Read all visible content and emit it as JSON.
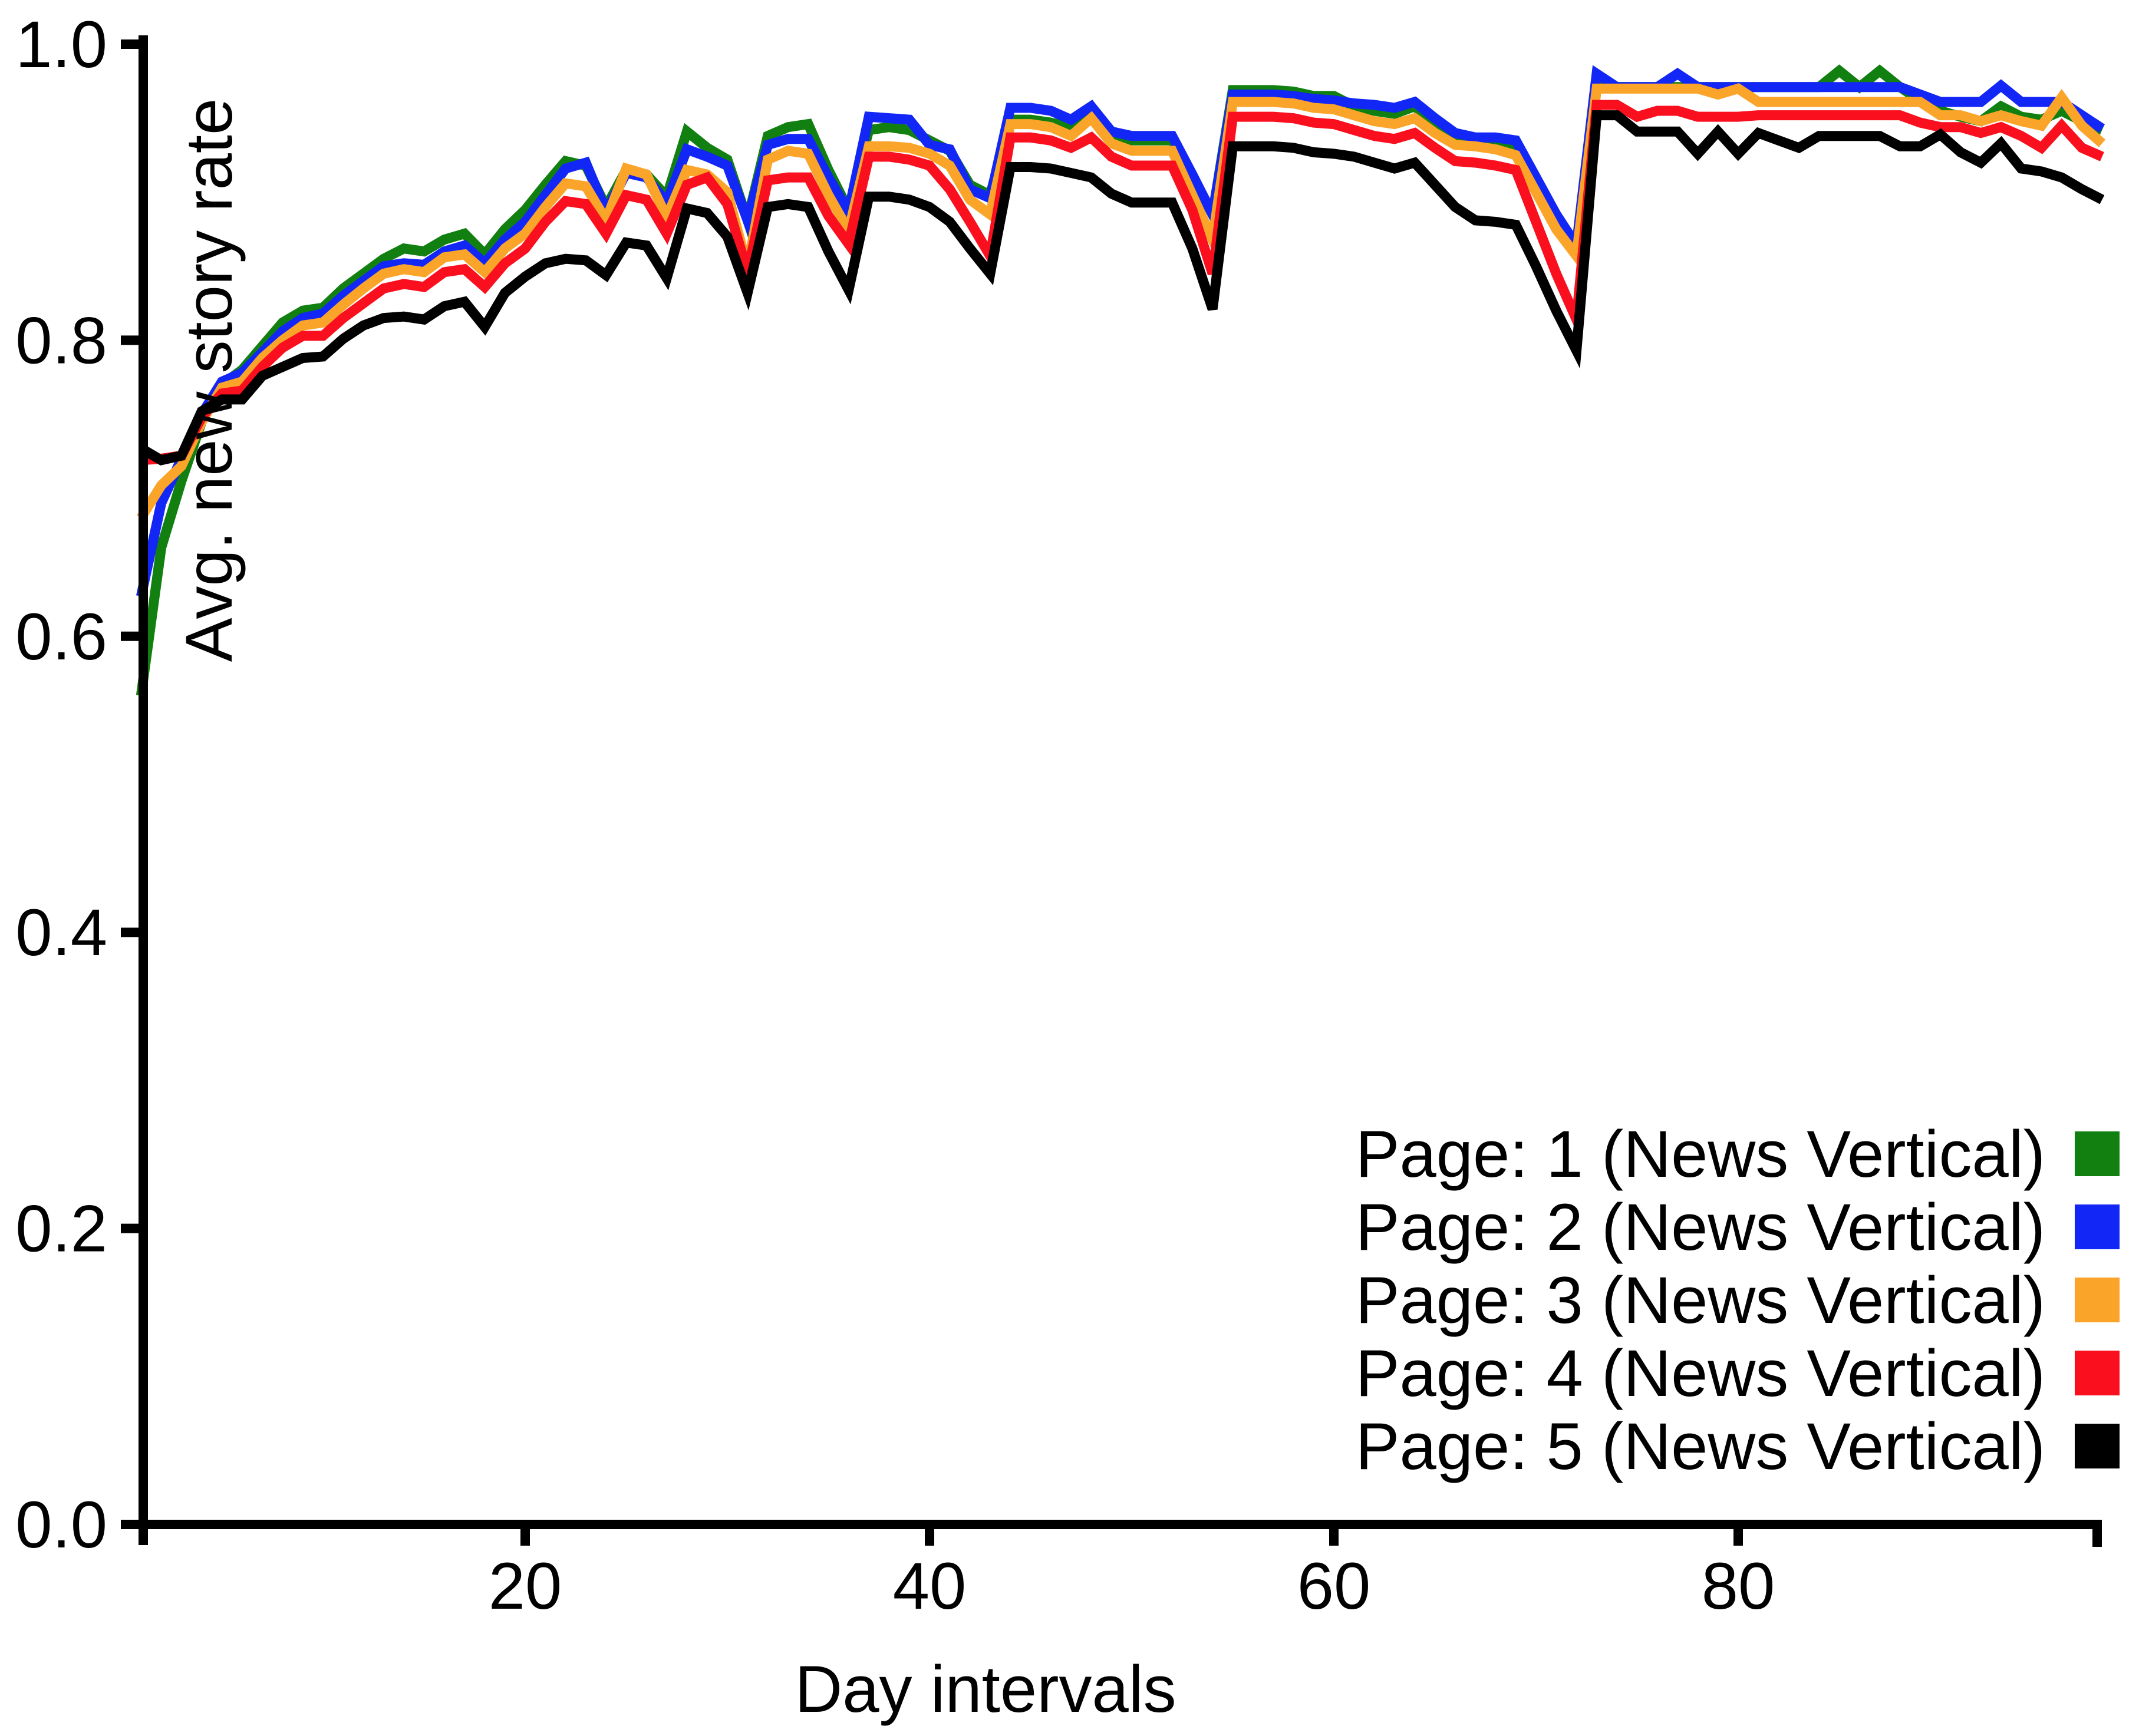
{
  "chart_data": {
    "type": "line",
    "title": "",
    "xlabel": "Day intervals",
    "ylabel": "Avg. new story rate",
    "xlim": [
      0,
      98
    ],
    "ylim": [
      0.0,
      1.0
    ],
    "grid": false,
    "legend_position": "lower right",
    "x_ticks": [
      "20",
      "40",
      "60",
      "80"
    ],
    "y_ticks": [
      "1.0",
      "0.8",
      "0.6",
      "0.4",
      "0.2",
      "0.0"
    ],
    "x": [
      1,
      2,
      3,
      4,
      5,
      6,
      7,
      8,
      9,
      10,
      11,
      12,
      13,
      14,
      15,
      16,
      17,
      18,
      19,
      20,
      21,
      22,
      23,
      24,
      25,
      26,
      27,
      28,
      29,
      30,
      31,
      32,
      33,
      34,
      35,
      36,
      37,
      38,
      39,
      40,
      41,
      42,
      43,
      44,
      45,
      46,
      47,
      48,
      49,
      50,
      51,
      52,
      53,
      54,
      55,
      56,
      57,
      58,
      59,
      60,
      61,
      62,
      63,
      64,
      65,
      66,
      67,
      68,
      69,
      70,
      71,
      72,
      73,
      74,
      75,
      76,
      77,
      78,
      79,
      80,
      81,
      82,
      83,
      84,
      85,
      86,
      87,
      88,
      89,
      90,
      91,
      92,
      93,
      94,
      95,
      96,
      97,
      98
    ],
    "series": [
      {
        "name": "Page: 1 (News Vertical)",
        "color": "#118011",
        "values": [
          0.56,
          0.66,
          0.705,
          0.745,
          0.77,
          0.78,
          0.796,
          0.812,
          0.82,
          0.822,
          0.835,
          0.845,
          0.855,
          0.862,
          0.86,
          0.868,
          0.872,
          0.858,
          0.875,
          0.888,
          0.905,
          0.921,
          0.918,
          0.89,
          0.915,
          0.912,
          0.897,
          0.941,
          0.93,
          0.922,
          0.881,
          0.938,
          0.944,
          0.946,
          0.915,
          0.888,
          0.942,
          0.944,
          0.942,
          0.935,
          0.928,
          0.905,
          0.898,
          0.949,
          0.949,
          0.947,
          0.944,
          0.95,
          0.94,
          0.935,
          0.935,
          0.935,
          0.91,
          0.885,
          0.969,
          0.969,
          0.969,
          0.968,
          0.965,
          0.965,
          0.958,
          0.955,
          0.953,
          0.958,
          0.946,
          0.936,
          0.934,
          0.932,
          0.93,
          0.905,
          0.88,
          0.864,
          0.971,
          0.971,
          0.971,
          0.971,
          0.971,
          0.971,
          0.971,
          0.971,
          0.971,
          0.971,
          0.971,
          0.971,
          0.982,
          0.971,
          0.982,
          0.971,
          0.962,
          0.955,
          0.951,
          0.948,
          0.958,
          0.951,
          0.949,
          0.955,
          0.948,
          0.942
        ]
      },
      {
        "name": "Page: 2 (News Vertical)",
        "color": "#1226f5",
        "values": [
          0.627,
          0.69,
          0.72,
          0.75,
          0.772,
          0.778,
          0.792,
          0.806,
          0.815,
          0.818,
          0.83,
          0.84,
          0.85,
          0.852,
          0.851,
          0.86,
          0.864,
          0.852,
          0.868,
          0.88,
          0.898,
          0.916,
          0.92,
          0.887,
          0.913,
          0.91,
          0.893,
          0.929,
          0.924,
          0.918,
          0.881,
          0.932,
          0.936,
          0.936,
          0.91,
          0.887,
          0.951,
          0.95,
          0.949,
          0.932,
          0.929,
          0.902,
          0.896,
          0.957,
          0.957,
          0.955,
          0.949,
          0.958,
          0.941,
          0.938,
          0.938,
          0.938,
          0.912,
          0.885,
          0.966,
          0.966,
          0.966,
          0.965,
          0.963,
          0.962,
          0.96,
          0.959,
          0.957,
          0.961,
          0.95,
          0.94,
          0.937,
          0.937,
          0.935,
          0.91,
          0.885,
          0.864,
          0.98,
          0.971,
          0.971,
          0.971,
          0.98,
          0.971,
          0.971,
          0.971,
          0.971,
          0.971,
          0.971,
          0.971,
          0.971,
          0.971,
          0.971,
          0.971,
          0.966,
          0.961,
          0.961,
          0.961,
          0.972,
          0.961,
          0.961,
          0.961,
          0.952,
          0.943
        ]
      },
      {
        "name": "Page: 3 (News Vertical)",
        "color": "#fba42a",
        "values": [
          0.68,
          0.702,
          0.715,
          0.745,
          0.768,
          0.772,
          0.788,
          0.8,
          0.81,
          0.812,
          0.824,
          0.835,
          0.845,
          0.848,
          0.846,
          0.856,
          0.858,
          0.846,
          0.862,
          0.872,
          0.89,
          0.906,
          0.904,
          0.881,
          0.916,
          0.912,
          0.883,
          0.915,
          0.912,
          0.9,
          0.849,
          0.922,
          0.928,
          0.926,
          0.898,
          0.874,
          0.931,
          0.931,
          0.93,
          0.926,
          0.918,
          0.895,
          0.885,
          0.946,
          0.946,
          0.944,
          0.938,
          0.95,
          0.933,
          0.928,
          0.928,
          0.928,
          0.898,
          0.868,
          0.961,
          0.961,
          0.961,
          0.96,
          0.957,
          0.956,
          0.952,
          0.948,
          0.946,
          0.95,
          0.94,
          0.932,
          0.931,
          0.929,
          0.925,
          0.9,
          0.875,
          0.857,
          0.97,
          0.97,
          0.97,
          0.97,
          0.97,
          0.97,
          0.966,
          0.97,
          0.961,
          0.961,
          0.961,
          0.961,
          0.961,
          0.961,
          0.961,
          0.961,
          0.961,
          0.952,
          0.952,
          0.948,
          0.952,
          0.948,
          0.945,
          0.964,
          0.945,
          0.933
        ]
      },
      {
        "name": "Page: 4 (News Vertical)",
        "color": "#fa0f1e",
        "values": [
          0.719,
          0.72,
          0.722,
          0.748,
          0.764,
          0.766,
          0.782,
          0.795,
          0.803,
          0.803,
          0.815,
          0.825,
          0.835,
          0.838,
          0.836,
          0.846,
          0.848,
          0.836,
          0.852,
          0.862,
          0.88,
          0.894,
          0.892,
          0.872,
          0.898,
          0.895,
          0.872,
          0.905,
          0.91,
          0.892,
          0.846,
          0.908,
          0.91,
          0.91,
          0.884,
          0.865,
          0.924,
          0.924,
          0.922,
          0.918,
          0.902,
          0.88,
          0.857,
          0.937,
          0.937,
          0.935,
          0.93,
          0.937,
          0.924,
          0.918,
          0.918,
          0.918,
          0.888,
          0.845,
          0.951,
          0.951,
          0.951,
          0.95,
          0.947,
          0.946,
          0.942,
          0.938,
          0.936,
          0.94,
          0.93,
          0.921,
          0.92,
          0.918,
          0.915,
          0.88,
          0.845,
          0.814,
          0.959,
          0.959,
          0.951,
          0.955,
          0.955,
          0.951,
          0.951,
          0.951,
          0.952,
          0.952,
          0.952,
          0.952,
          0.952,
          0.952,
          0.952,
          0.952,
          0.947,
          0.944,
          0.944,
          0.94,
          0.944,
          0.938,
          0.93,
          0.945,
          0.93,
          0.924
        ]
      },
      {
        "name": "Page: 5 (News Vertical)",
        "color": "#000000",
        "values": [
          0.727,
          0.719,
          0.722,
          0.752,
          0.76,
          0.76,
          0.776,
          0.782,
          0.788,
          0.789,
          0.801,
          0.81,
          0.815,
          0.816,
          0.814,
          0.823,
          0.826,
          0.809,
          0.832,
          0.843,
          0.852,
          0.855,
          0.854,
          0.844,
          0.866,
          0.864,
          0.842,
          0.889,
          0.886,
          0.87,
          0.832,
          0.89,
          0.892,
          0.89,
          0.86,
          0.834,
          0.897,
          0.897,
          0.895,
          0.89,
          0.88,
          0.862,
          0.845,
          0.917,
          0.917,
          0.916,
          0.913,
          0.91,
          0.899,
          0.893,
          0.893,
          0.893,
          0.862,
          0.821,
          0.931,
          0.931,
          0.931,
          0.93,
          0.927,
          0.926,
          0.924,
          0.92,
          0.916,
          0.92,
          0.905,
          0.89,
          0.881,
          0.88,
          0.878,
          0.85,
          0.82,
          0.793,
          0.952,
          0.952,
          0.941,
          0.941,
          0.941,
          0.926,
          0.941,
          0.926,
          0.94,
          0.935,
          0.93,
          0.938,
          0.938,
          0.938,
          0.938,
          0.931,
          0.931,
          0.939,
          0.927,
          0.92,
          0.933,
          0.916,
          0.914,
          0.91,
          0.902,
          0.895
        ]
      }
    ]
  }
}
